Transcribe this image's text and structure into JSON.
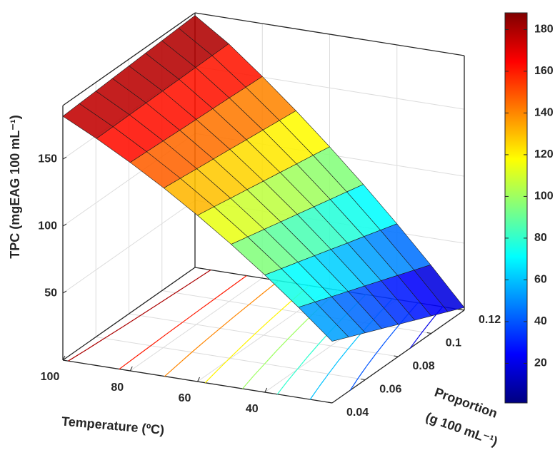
{
  "chart_data": {
    "type": "surface",
    "x_label": "Temperature (ºC)",
    "y_label": [
      "Proportion",
      "(g 100 mL⁻¹)"
    ],
    "z_label": "TPC (mgEAG 100 mL⁻¹)",
    "x": [
      20,
      30,
      40,
      50,
      60,
      70,
      80,
      90,
      100
    ],
    "y": [
      0.04,
      0.05,
      0.06,
      0.07,
      0.08,
      0.09,
      0.1,
      0.11,
      0.12
    ],
    "z": [
      [
        46,
        40.5,
        35,
        29.5,
        24,
        18.5,
        13,
        7.5,
        2
      ],
      [
        67.4,
        62.7,
        58,
        53.3,
        48.7,
        44,
        39.3,
        34.6,
        29.9
      ],
      [
        87.5,
        83.6,
        79.8,
        75.9,
        72,
        68.1,
        64.3,
        60.4,
        56.5
      ],
      [
        106.4,
        103.3,
        100.3,
        97.2,
        94.2,
        91.1,
        88,
        85,
        81.9
      ],
      [
        124,
        121.8,
        119.5,
        117.3,
        115,
        112.8,
        110.5,
        108.3,
        106
      ],
      [
        140.4,
        139,
        137.5,
        136.1,
        134.7,
        133.2,
        131.8,
        130.3,
        128.9
      ],
      [
        155.5,
        154.9,
        154.3,
        153.6,
        153,
        152.4,
        151.8,
        151.1,
        150.5
      ],
      [
        169.4,
        169.6,
        169.8,
        170,
        170.2,
        170.3,
        170.5,
        170.7,
        170.9
      ],
      [
        182,
        182.8,
        183.5,
        184.3,
        185,
        185.8,
        186.5,
        187.3,
        188
      ]
    ],
    "xlim": [
      20,
      100
    ],
    "xticks": [
      40,
      60,
      80,
      100
    ],
    "ylim": [
      0.04,
      0.12
    ],
    "yticks": [
      0.04,
      0.06,
      0.08,
      0.1,
      0.12
    ],
    "zlim": [
      0,
      190
    ],
    "zticks": [
      50,
      100,
      150
    ],
    "colormap": "jet",
    "clim": [
      1,
      188
    ],
    "cticks": [
      20,
      40,
      60,
      80,
      100,
      120,
      140,
      160,
      180
    ],
    "grid": true,
    "contours": true
  }
}
